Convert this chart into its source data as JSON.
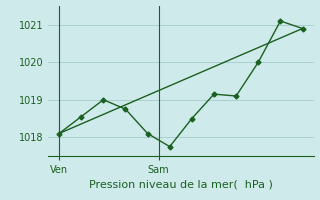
{
  "bg_color": "#ceeaea",
  "grid_color": "#aacece",
  "line_color": "#1a6020",
  "line1_x": [
    0,
    1,
    2,
    3,
    4,
    5,
    6,
    7,
    8,
    9,
    10,
    11
  ],
  "line1_y": [
    1018.1,
    1018.55,
    1019.0,
    1018.75,
    1018.1,
    1017.75,
    1018.5,
    1019.15,
    1019.1,
    1020.0,
    1021.1,
    1020.9
  ],
  "line2_x": [
    0,
    11
  ],
  "line2_y": [
    1018.1,
    1020.9
  ],
  "ven_x": 0,
  "sam_x": 4.5,
  "yticks": [
    1018,
    1019,
    1020,
    1021
  ],
  "ylim": [
    1017.5,
    1021.5
  ],
  "xlim": [
    -0.5,
    11.5
  ],
  "xlabel": "Pression niveau de la mer(  hPa )",
  "tick_fontsize": 7,
  "label_fontsize": 8
}
